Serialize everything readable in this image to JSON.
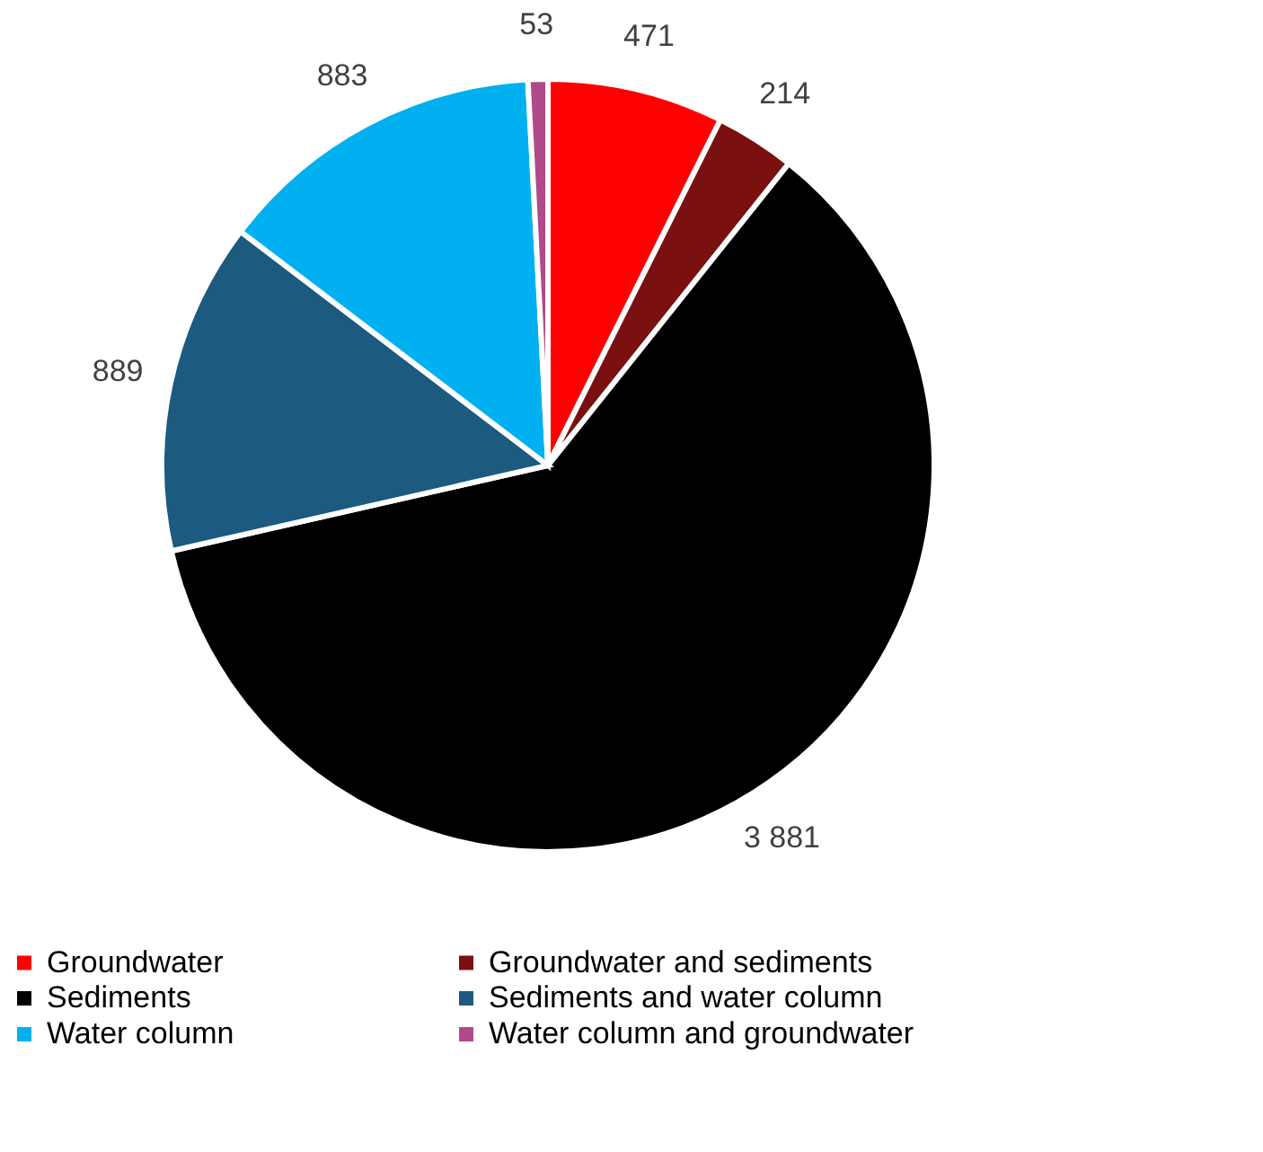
{
  "chart_data": {
    "type": "pie",
    "categories": [
      "Groundwater",
      "Groundwater and sediments",
      "Sediments",
      "Sediments and water column",
      "Water column",
      "Water column and groundwater"
    ],
    "values": [
      471,
      214,
      3881,
      889,
      883,
      53
    ],
    "value_labels": [
      "471",
      "214",
      "3 881",
      "889",
      "883",
      "53"
    ],
    "colors": [
      "#ff0000",
      "#7a1010",
      "#000000",
      "#1c5a80",
      "#00b0f0",
      "#b04a8a"
    ],
    "legend": "bottom"
  }
}
